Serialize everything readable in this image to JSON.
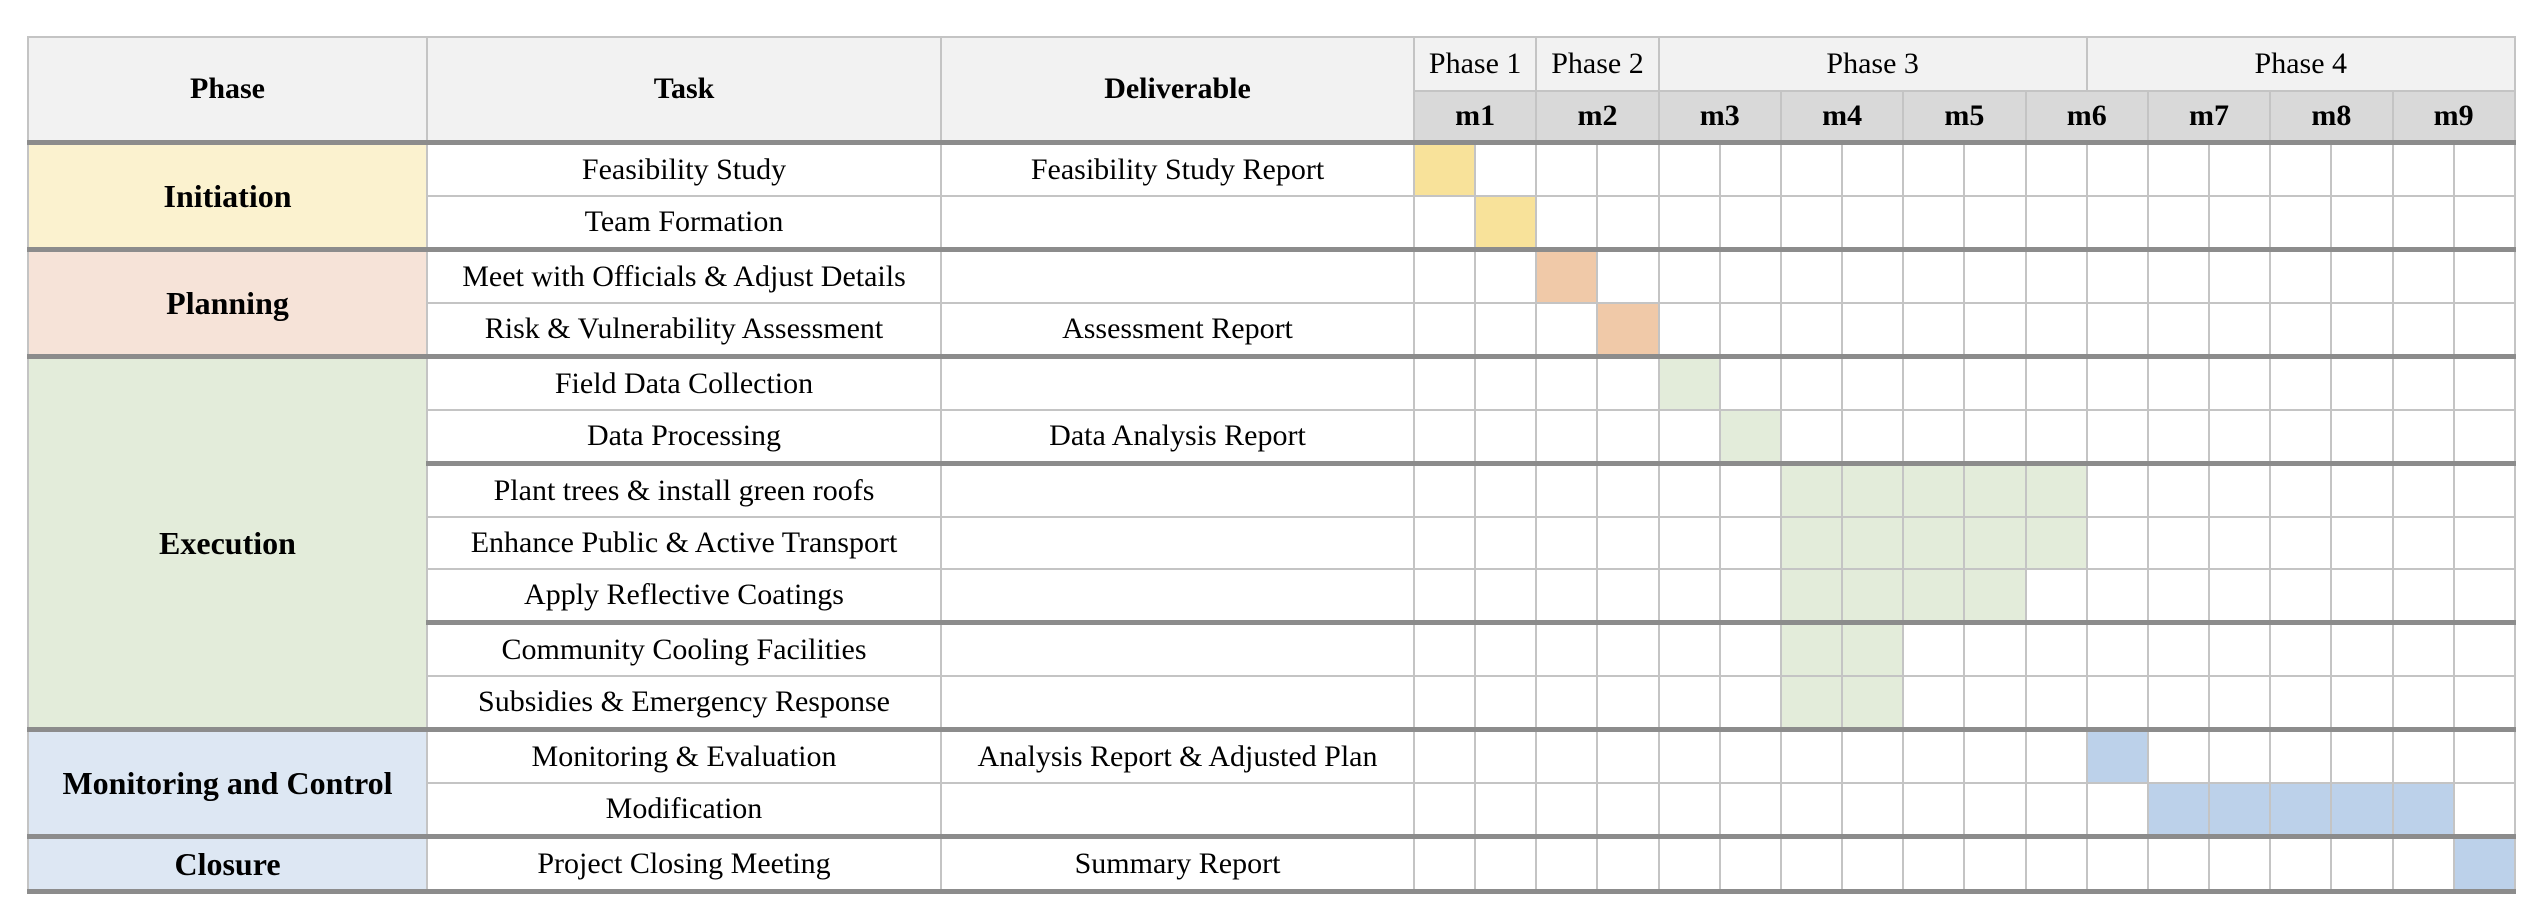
{
  "headers": {
    "phase": "Phase",
    "task": "Task",
    "deliverable": "Deliverable"
  },
  "phase_groups": [
    {
      "label": "Phase 1",
      "span": 2
    },
    {
      "label": "Phase 2",
      "span": 2
    },
    {
      "label": "Phase 3",
      "span": 7
    },
    {
      "label": "Phase 4",
      "span": 7
    }
  ],
  "months": [
    "m1",
    "m2",
    "m3",
    "m4",
    "m5",
    "m6",
    "m7",
    "m8",
    "m9"
  ],
  "phases": [
    {
      "name": "Initiation",
      "color": "#fbf2cf",
      "bar_color": "#f8e29a"
    },
    {
      "name": "Planning",
      "color": "#f6e3d8",
      "bar_color": "#f0c9a8"
    },
    {
      "name": "Execution",
      "color": "#e3ecda",
      "bar_color": "#e3ecda"
    },
    {
      "name": "Monitoring and Control",
      "color": "#dde7f3",
      "bar_color": "#bcd1ea"
    },
    {
      "name": "Closure",
      "color": "#dde7f3",
      "bar_color": "#bcd1ea"
    }
  ],
  "tasks": [
    {
      "phase": 0,
      "task": "Feasibility Study",
      "deliverable": "Feasibility Study Report",
      "start": 0,
      "end": 0
    },
    {
      "phase": 0,
      "task": "Team Formation",
      "deliverable": "",
      "start": 1,
      "end": 1
    },
    {
      "phase": 1,
      "task": "Meet with Officials & Adjust Details",
      "deliverable": "",
      "start": 2,
      "end": 2
    },
    {
      "phase": 1,
      "task": "Risk & Vulnerability Assessment",
      "deliverable": "Assessment Report",
      "start": 3,
      "end": 3
    },
    {
      "phase": 2,
      "task": "Field Data Collection",
      "deliverable": "",
      "start": 4,
      "end": 4
    },
    {
      "phase": 2,
      "task": "Data Processing",
      "deliverable": "Data Analysis Report",
      "start": 5,
      "end": 5
    },
    {
      "phase": 2,
      "task": "Plant trees & install green roofs",
      "deliverable": "",
      "start": 6,
      "end": 10
    },
    {
      "phase": 2,
      "task": "Enhance Public & Active Transport",
      "deliverable": "",
      "start": 6,
      "end": 10
    },
    {
      "phase": 2,
      "task": "Apply Reflective Coatings",
      "deliverable": "",
      "start": 6,
      "end": 9
    },
    {
      "phase": 2,
      "task": "Community Cooling Facilities",
      "deliverable": "",
      "start": 6,
      "end": 7
    },
    {
      "phase": 2,
      "task": "Subsidies & Emergency Response",
      "deliverable": "",
      "start": 6,
      "end": 7
    },
    {
      "phase": 3,
      "task": "Monitoring & Evaluation",
      "deliverable": "Analysis Report & Adjusted Plan",
      "start": 11,
      "end": 11
    },
    {
      "phase": 3,
      "task": "Modification",
      "deliverable": "",
      "start": 12,
      "end": 16
    },
    {
      "phase": 4,
      "task": "Project Closing Meeting",
      "deliverable": "Summary Report",
      "start": 17,
      "end": 17
    }
  ]
}
